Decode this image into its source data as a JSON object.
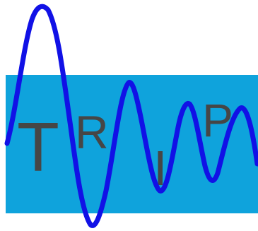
{
  "logo": {
    "letters": [
      "T",
      "R",
      "I",
      "P"
    ],
    "colors": {
      "background": "#ffffff",
      "panel": "#0fa3dc",
      "letters": "#464646",
      "wave": "#1111e6"
    }
  }
}
